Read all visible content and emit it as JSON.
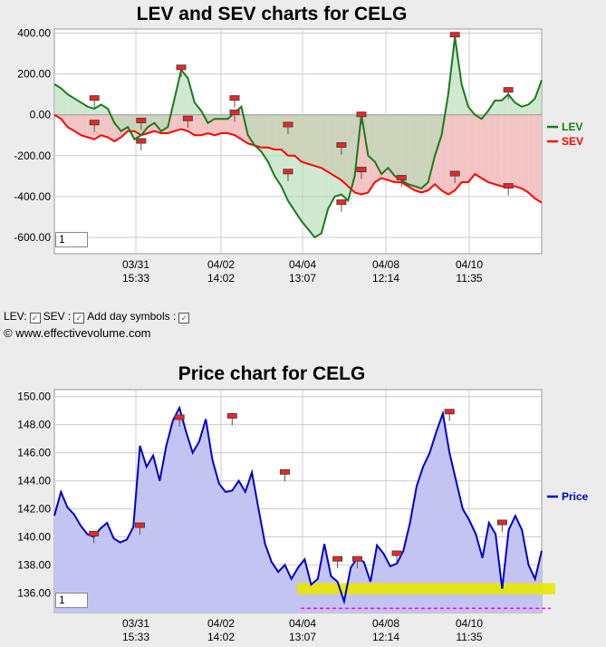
{
  "chart_data": [
    {
      "type": "area",
      "title": "LEV and SEV charts for CELG",
      "ylim": [
        -680,
        420
      ],
      "yticks": [
        400,
        200,
        0,
        -200,
        -400,
        -600
      ],
      "ytick_labels": [
        "400.00",
        "200.00",
        "0.00",
        "-200.00",
        "-400.00",
        "-600.00"
      ],
      "xtick_labels": [
        [
          "03/31",
          "15:33"
        ],
        [
          "04/02",
          "14:02"
        ],
        [
          "04/04",
          "13:07"
        ],
        [
          "04/08",
          "12:14"
        ],
        [
          "04/10",
          "11:35"
        ]
      ],
      "legend": [
        {
          "name": "LEV",
          "color": "#1a7a1a"
        },
        {
          "name": "SEV",
          "color": "#ff0000"
        }
      ],
      "legend_position": "right",
      "grid": true,
      "series": [
        {
          "name": "LEV",
          "color": "#1a7a1a",
          "values": [
            150,
            130,
            100,
            80,
            60,
            40,
            30,
            50,
            30,
            -40,
            -80,
            -60,
            -120,
            -100,
            -60,
            -40,
            -80,
            -60,
            80,
            220,
            180,
            60,
            20,
            -40,
            -20,
            -20,
            -20,
            10,
            40,
            -100,
            -150,
            -180,
            -230,
            -300,
            -350,
            -420,
            -470,
            -520,
            -560,
            -600,
            -580,
            -460,
            -400,
            -390,
            -420,
            -300,
            0,
            -200,
            -230,
            -290,
            -260,
            -300,
            -320,
            -340,
            -350,
            -360,
            -330,
            -200,
            -100,
            100,
            380,
            150,
            40,
            0,
            -20,
            20,
            70,
            70,
            100,
            60,
            40,
            50,
            80,
            170
          ]
        },
        {
          "name": "SEV",
          "color": "#ff0000",
          "values": [
            0,
            -20,
            -60,
            -80,
            -100,
            -110,
            -120,
            -100,
            -110,
            -130,
            -110,
            -80,
            -80,
            -100,
            -90,
            -80,
            -90,
            -90,
            -80,
            -70,
            -80,
            -100,
            -100,
            -90,
            -100,
            -90,
            -90,
            -100,
            -120,
            -140,
            -150,
            -160,
            -160,
            -170,
            -170,
            -200,
            -200,
            -230,
            -240,
            -250,
            -260,
            -280,
            -300,
            -320,
            -350,
            -380,
            -390,
            -380,
            -330,
            -310,
            -320,
            -330,
            -330,
            -350,
            -370,
            -380,
            -370,
            -340,
            -370,
            -390,
            -370,
            -330,
            -330,
            -290,
            -310,
            -330,
            -340,
            -350,
            -350,
            -350,
            -360,
            -380,
            -410,
            -430
          ]
        }
      ],
      "markers": [
        {
          "x": 6,
          "y": 80
        },
        {
          "x": 6,
          "y": -40
        },
        {
          "x": 13,
          "y": -130
        },
        {
          "x": 13,
          "y": -30
        },
        {
          "x": 19,
          "y": 230
        },
        {
          "x": 20,
          "y": -20
        },
        {
          "x": 27,
          "y": 80
        },
        {
          "x": 27,
          "y": 10
        },
        {
          "x": 35,
          "y": -280
        },
        {
          "x": 35,
          "y": -50
        },
        {
          "x": 43,
          "y": -430
        },
        {
          "x": 43,
          "y": -150
        },
        {
          "x": 46,
          "y": -270
        },
        {
          "x": 46,
          "y": 0
        },
        {
          "x": 52,
          "y": -310
        },
        {
          "x": 60,
          "y": -290
        },
        {
          "x": 60,
          "y": 390
        },
        {
          "x": 68,
          "y": -350
        },
        {
          "x": 68,
          "y": 120
        }
      ]
    },
    {
      "type": "area",
      "title": "Price chart for CELG",
      "ylim": [
        134.6,
        150.5
      ],
      "yticks": [
        136,
        138,
        140,
        142,
        144,
        146,
        148,
        150
      ],
      "ytick_labels": [
        "136.00",
        "138.00",
        "140.00",
        "142.00",
        "144.00",
        "146.00",
        "148.00",
        "150.00"
      ],
      "xtick_labels": [
        [
          "03/31",
          "15:33"
        ],
        [
          "04/02",
          "14:02"
        ],
        [
          "04/04",
          "13:07"
        ],
        [
          "04/08",
          "12:14"
        ],
        [
          "04/10",
          "11:35"
        ]
      ],
      "legend": [
        {
          "name": "Price",
          "color": "#0000cc"
        }
      ],
      "legend_position": "right",
      "grid": true,
      "series": [
        {
          "name": "Price",
          "color": "#0000cc",
          "values": [
            141.5,
            143.2,
            142.1,
            141.6,
            140.8,
            140.2,
            140.0,
            140.6,
            141.0,
            139.9,
            139.6,
            139.8,
            140.7,
            146.5,
            145.0,
            145.8,
            144.0,
            146.5,
            148.3,
            149.2,
            147.5,
            146.0,
            146.8,
            148.4,
            145.5,
            143.8,
            143.2,
            143.3,
            144.0,
            143.2,
            144.6,
            142.0,
            139.5,
            138.2,
            137.5,
            138.0,
            137.0,
            137.8,
            138.4,
            136.6,
            137.0,
            139.5,
            137.2,
            136.8,
            135.4,
            137.8,
            138.5,
            138.2,
            136.8,
            139.4,
            138.8,
            137.9,
            138.1,
            139.0,
            141.0,
            143.6,
            145.0,
            146.0,
            147.5,
            148.8,
            146.0,
            144.0,
            142.0,
            141.2,
            140.2,
            138.5,
            141.0,
            140.2,
            136.3,
            140.5,
            141.5,
            140.5,
            138.0,
            137.0,
            139.0
          ]
        }
      ],
      "markers": [
        {
          "x": 6,
          "y": 140.2
        },
        {
          "x": 13,
          "y": 140.8
        },
        {
          "x": 19,
          "y": 148.5
        },
        {
          "x": 27,
          "y": 148.6
        },
        {
          "x": 35,
          "y": 144.6
        },
        {
          "x": 43,
          "y": 138.4
        },
        {
          "x": 46,
          "y": 138.4
        },
        {
          "x": 52,
          "y": 138.8
        },
        {
          "x": 60,
          "y": 148.9
        },
        {
          "x": 68,
          "y": 141.0
        }
      ],
      "highlight_band": {
        "from": 135.9,
        "to": 136.7,
        "color": "#e8e800"
      },
      "dashed_level": {
        "y": 134.9,
        "color": "#ff00ff"
      }
    }
  ],
  "controls": {
    "lev_label": "LEV:",
    "sev_label": "SEV :",
    "day_symbols_label": "Add day symbols :",
    "checkmark": "✓"
  },
  "copyright": "© www.effectivevolume.com",
  "zoom_value": "1"
}
